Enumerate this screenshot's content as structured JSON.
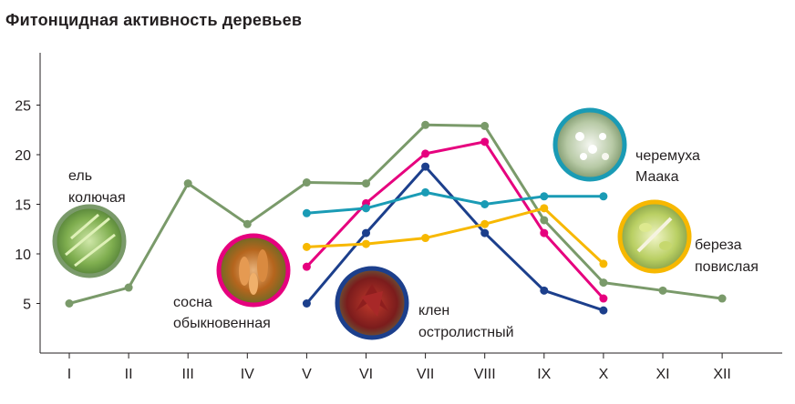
{
  "chart_data": {
    "type": "line",
    "title": "Фитонцидная активность деревьев",
    "xlabel": "",
    "ylabel": "",
    "categories": [
      "I",
      "II",
      "III",
      "IV",
      "V",
      "VI",
      "VII",
      "VIII",
      "IX",
      "X",
      "XI",
      "XII"
    ],
    "yticks": [
      5,
      10,
      15,
      20,
      25
    ],
    "ylim": [
      0,
      29
    ],
    "grid": false,
    "series": [
      {
        "name": "ель колючая",
        "color": "#7a9a6a",
        "icon": "spruce-branch-photo",
        "values": [
          5.0,
          6.6,
          17.1,
          13.0,
          17.2,
          17.1,
          23.0,
          22.9,
          13.4,
          7.1,
          6.3,
          5.5
        ]
      },
      {
        "name": "сосна обыкновенная",
        "color": "#e6007e",
        "icon": "pine-cones-photo",
        "values": [
          null,
          null,
          null,
          null,
          8.7,
          15.1,
          20.1,
          21.3,
          12.1,
          5.5,
          null,
          null
        ]
      },
      {
        "name": "клен остролистный",
        "color": "#1c3f8c",
        "icon": "red-maple-leaves-photo",
        "values": [
          null,
          null,
          null,
          null,
          5.0,
          12.1,
          18.8,
          12.1,
          6.3,
          4.3,
          null,
          null
        ]
      },
      {
        "name": "черемуха Маака",
        "color": "#1a9bb5",
        "icon": "bird-cherry-blossom-photo",
        "values": [
          null,
          null,
          null,
          null,
          14.1,
          14.6,
          16.2,
          15.0,
          15.8,
          15.8,
          null,
          null
        ]
      },
      {
        "name": "береза повислая",
        "color": "#f7b800",
        "icon": "birch-leaves-photo",
        "values": [
          null,
          null,
          null,
          null,
          10.7,
          11.0,
          11.6,
          13.0,
          14.6,
          9.0,
          null,
          null
        ]
      }
    ],
    "annotations": [
      {
        "lines": [
          "ель",
          "колючая"
        ]
      },
      {
        "lines": [
          "сосна",
          "обыкновенная"
        ]
      },
      {
        "lines": [
          "клен",
          "остролистный"
        ]
      },
      {
        "lines": [
          "черемуха",
          "Маака"
        ]
      },
      {
        "lines": [
          "береза",
          "повислая"
        ]
      }
    ]
  }
}
